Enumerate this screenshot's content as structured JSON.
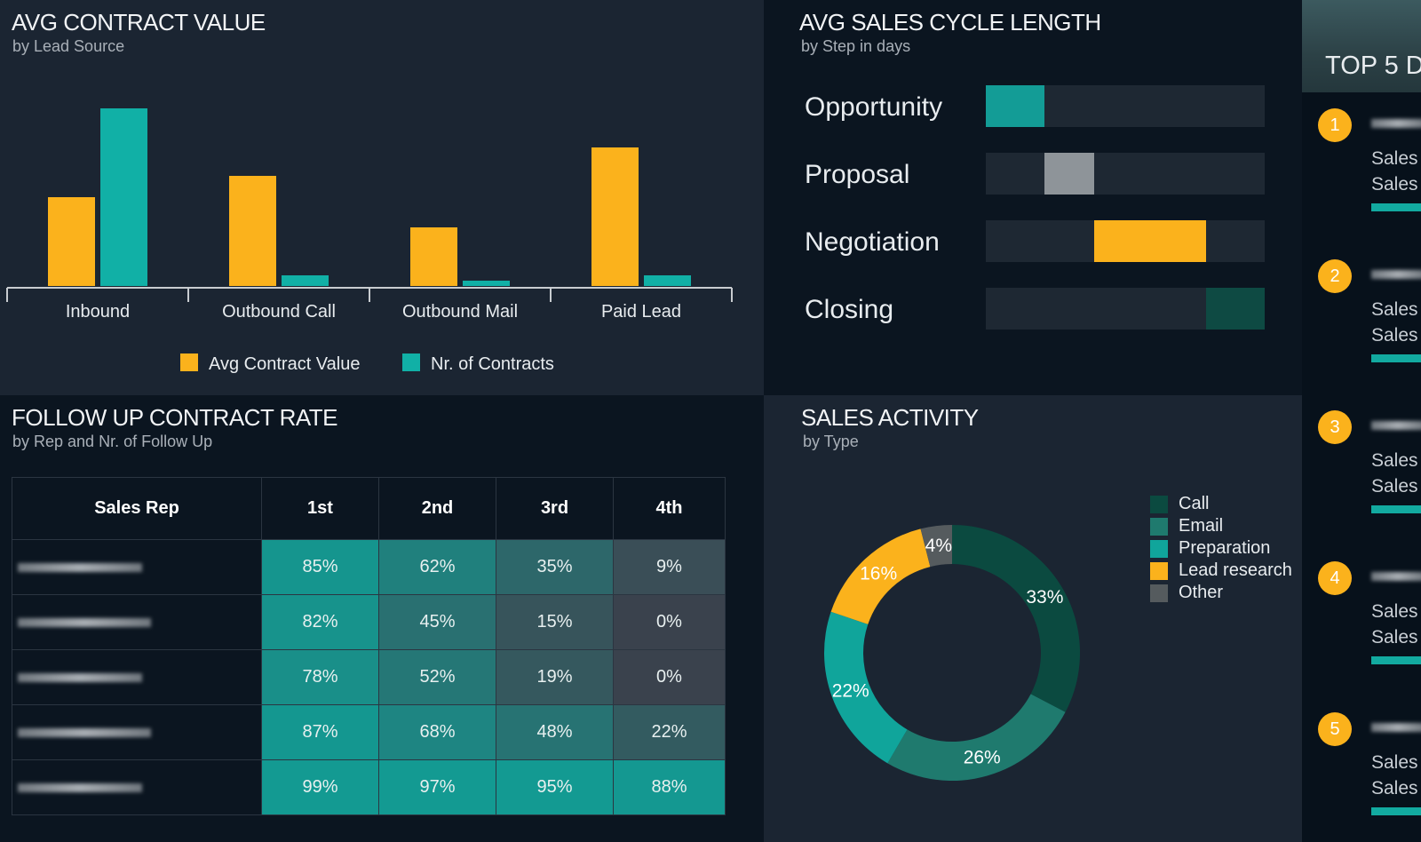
{
  "contract": {
    "title": "AVG CONTRACT VALUE",
    "subtitle": "by Lead Source",
    "chart_data": {
      "type": "bar",
      "categories": [
        "Inbound",
        "Outbound Call",
        "Outbound Mail",
        "Paid Lead"
      ],
      "series": [
        {
          "name": "Avg Contract Value",
          "values": [
            50,
            62,
            33,
            78
          ],
          "color": "#fbb21c"
        },
        {
          "name": "Nr. of Contracts",
          "values": [
            100,
            6,
            3,
            6
          ],
          "color": "#11b0a6"
        }
      ]
    }
  },
  "cycle": {
    "title": "AVG SALES CYCLE LENGTH",
    "subtitle": "by Step in days",
    "steps": [
      {
        "label": "Opportunity",
        "start": 0,
        "end": 21,
        "color": "#139c96"
      },
      {
        "label": "Proposal",
        "start": 21,
        "end": 39,
        "color": "#8e9499"
      },
      {
        "label": "Negotiation",
        "start": 39,
        "end": 79,
        "color": "#fbb21c"
      },
      {
        "label": "Closing",
        "start": 79,
        "end": 100,
        "color": "#0e4a43"
      }
    ]
  },
  "followup": {
    "title": "FOLLOW UP CONTRACT RATE",
    "subtitle": "by Rep and Nr. of Follow Up",
    "headers": [
      "Sales Rep",
      "1st",
      "2nd",
      "3rd",
      "4th"
    ],
    "rows": [
      [
        85,
        62,
        35,
        9
      ],
      [
        82,
        45,
        15,
        0
      ],
      [
        78,
        52,
        19,
        0
      ],
      [
        87,
        68,
        48,
        22
      ],
      [
        99,
        97,
        95,
        88
      ]
    ],
    "labels": [
      [
        "85%",
        "62%",
        "35%",
        "9%"
      ],
      [
        "82%",
        "45%",
        "15%",
        "0%"
      ],
      [
        "78%",
        "52%",
        "19%",
        "0%"
      ],
      [
        "87%",
        "68%",
        "48%",
        "22%"
      ],
      [
        "99%",
        "97%",
        "95%",
        "88%"
      ]
    ]
  },
  "activity": {
    "title": "SALES ACTIVITY",
    "subtitle": "by Type",
    "chart_data": {
      "type": "pie",
      "donut": true,
      "slices": [
        {
          "name": "Call",
          "value": 33,
          "label": "33%",
          "color": "#0b4a40"
        },
        {
          "name": "Email",
          "value": 26,
          "label": "26%",
          "color": "#1f7a6e"
        },
        {
          "name": "Preparation",
          "value": 22,
          "label": "22%",
          "color": "#10a59b"
        },
        {
          "name": "Lead research",
          "value": 16,
          "label": "16%",
          "color": "#fbb21c"
        },
        {
          "name": "Other",
          "value": 4,
          "label": "4%",
          "color": "#555b5e"
        }
      ]
    }
  },
  "top5": {
    "title": "TOP 5 D",
    "items": [
      {
        "rank": "1",
        "l1": "Sales",
        "l2": "Sales"
      },
      {
        "rank": "2",
        "l1": "Sales",
        "l2": "Sales"
      },
      {
        "rank": "3",
        "l1": "Sales",
        "l2": "Sales"
      },
      {
        "rank": "4",
        "l1": "Sales",
        "l2": "Sales"
      },
      {
        "rank": "5",
        "l1": "Sales",
        "l2": "Sales"
      }
    ]
  }
}
